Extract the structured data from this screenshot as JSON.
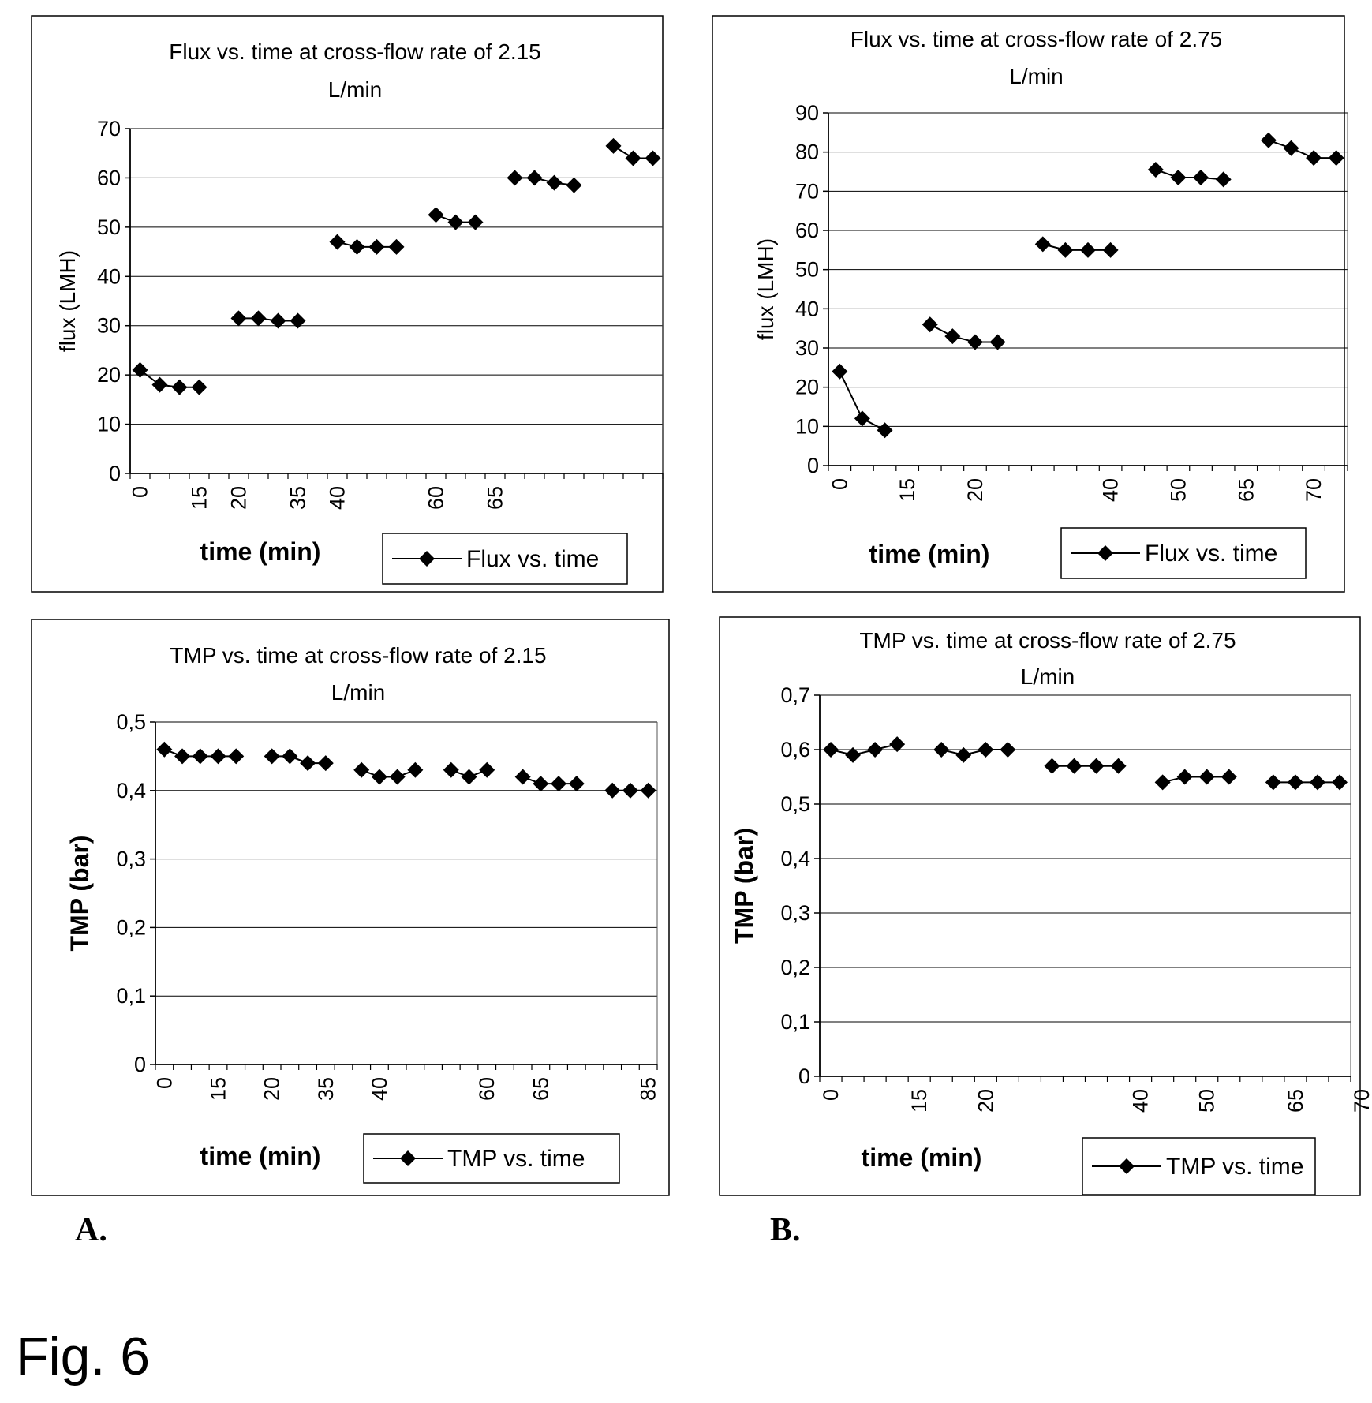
{
  "figure": {
    "caption": "Fig. 6",
    "panel_labels": [
      "A.",
      "B."
    ]
  },
  "chart_data": [
    {
      "type": "line",
      "title": "Flux vs. time at cross-flow rate of 2.15 L/min",
      "xlabel": "time (min)",
      "ylabel": "flux (LMH)",
      "ylim": [
        0,
        70
      ],
      "yticks": [
        "0",
        "10",
        "20",
        "30",
        "40",
        "50",
        "60",
        "70"
      ],
      "grid": true,
      "legend": "bottom-right",
      "x_tick_labels": [
        "0",
        "15",
        "20",
        "35",
        "40",
        "60",
        "65"
      ],
      "series": [
        {
          "name": "Flux vs. time",
          "segments": [
            [
              21,
              18,
              17.5,
              17.5
            ],
            [
              31.5,
              31.5,
              31,
              31
            ],
            [
              47,
              46,
              46,
              46
            ],
            [
              52.5,
              51,
              51
            ],
            [
              60,
              60,
              59,
              58.5
            ],
            [
              66.5,
              64,
              64
            ]
          ]
        }
      ]
    },
    {
      "type": "line",
      "title": "Flux vs. time at cross-flow rate of 2.75 L/min",
      "xlabel": "time (min)",
      "ylabel": "flux (LMH)",
      "ylim": [
        0,
        90
      ],
      "yticks": [
        "0",
        "10",
        "20",
        "30",
        "40",
        "50",
        "60",
        "70",
        "80",
        "90"
      ],
      "grid": true,
      "legend": "bottom-right",
      "x_tick_labels": [
        "0",
        "15",
        "20",
        "40",
        "50",
        "65",
        "70"
      ],
      "series": [
        {
          "name": "Flux vs. time",
          "segments": [
            [
              24,
              12,
              9
            ],
            [
              36,
              33,
              31.5,
              31.5
            ],
            [
              56.5,
              55,
              55,
              55
            ],
            [
              75.5,
              73.5,
              73.5,
              73
            ],
            [
              83,
              81,
              78.5,
              78.5
            ]
          ]
        }
      ]
    },
    {
      "type": "line",
      "title": "TMP vs. time at cross-flow rate of 2.15 L/min",
      "xlabel": "time (min)",
      "ylabel": "TMP (bar)",
      "ylim": [
        0,
        0.5
      ],
      "yticks": [
        "0",
        "0,1",
        "0,2",
        "0,3",
        "0,4",
        "0,5"
      ],
      "grid": true,
      "legend": "bottom-right",
      "x_tick_labels": [
        "0",
        "15",
        "20",
        "35",
        "40",
        "60",
        "65",
        "85"
      ],
      "series": [
        {
          "name": "TMP vs. time",
          "segments": [
            [
              0.46,
              0.45,
              0.45,
              0.45,
              0.45
            ],
            [
              0.45,
              0.45,
              0.44,
              0.44
            ],
            [
              0.43,
              0.42,
              0.42,
              0.43
            ],
            [
              0.43,
              0.42,
              0.43
            ],
            [
              0.42,
              0.41,
              0.41,
              0.41
            ],
            [
              0.4,
              0.4,
              0.4
            ]
          ]
        }
      ]
    },
    {
      "type": "line",
      "title": "TMP vs. time at cross-flow rate of 2.75 L/min",
      "xlabel": "time (min)",
      "ylabel": "TMP (bar)",
      "ylim": [
        0,
        0.7
      ],
      "yticks": [
        "0",
        "0,1",
        "0,2",
        "0,3",
        "0,4",
        "0,5",
        "0,6",
        "0,7"
      ],
      "grid": true,
      "legend": "bottom-right",
      "x_tick_labels": [
        "0",
        "15",
        "20",
        "40",
        "50",
        "65",
        "70"
      ],
      "series": [
        {
          "name": "TMP vs. time",
          "segments": [
            [
              0.6,
              0.59,
              0.6,
              0.61
            ],
            [
              0.6,
              0.59,
              0.6,
              0.6
            ],
            [
              0.57,
              0.57,
              0.57,
              0.57
            ],
            [
              0.54,
              0.55,
              0.55,
              0.55
            ],
            [
              0.54,
              0.54,
              0.54,
              0.54
            ]
          ]
        }
      ]
    }
  ]
}
